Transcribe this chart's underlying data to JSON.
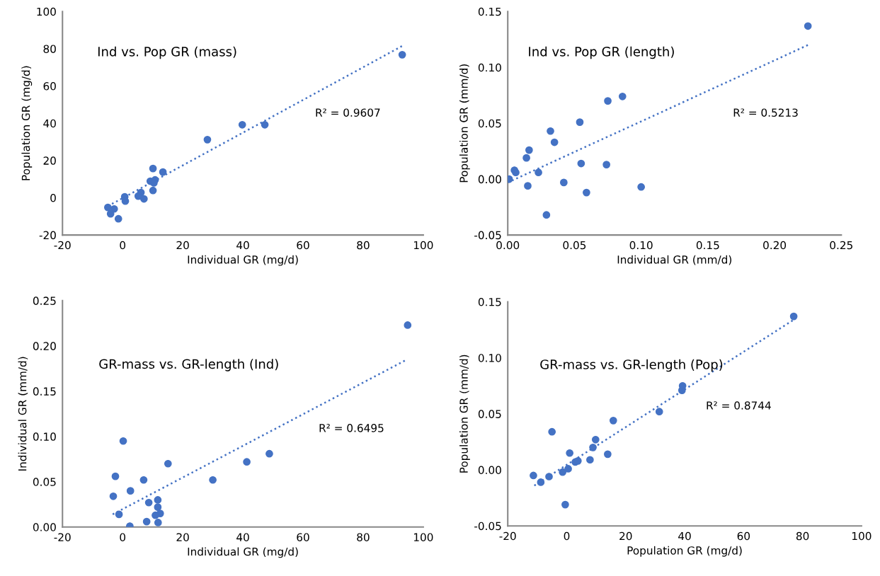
{
  "chart_data": [
    {
      "type": "scatter",
      "title": "Ind vs. Pop GR (mass)",
      "xlabel": "Individual GR (mg/d)",
      "ylabel": "Population GR (mg/d)",
      "annotations": [
        "R² = 0.9607"
      ],
      "grid": false,
      "marker": "circle",
      "xlim": [
        -20,
        100
      ],
      "xticks": [
        -20,
        0,
        20,
        40,
        60,
        80,
        100
      ],
      "ylim": [
        -20,
        100
      ],
      "yticks": [
        -20,
        0,
        20,
        40,
        60,
        80,
        100
      ],
      "series": [
        {
          "color": "#4472c4",
          "x": [
            93,
            39.8,
            47.3,
            28.2,
            10.1,
            13.4,
            9.2,
            10.8,
            10.4,
            10.1,
            0.7,
            0.9,
            6.1,
            5.2,
            7.1,
            -4.9,
            -2.8,
            -4.0,
            -1.4
          ],
          "values": [
            76.8,
            39.2,
            39.2,
            31.2,
            15.7,
            13.8,
            8.9,
            9.6,
            8.0,
            3.9,
            0.5,
            -1.8,
            2.8,
            0.9,
            -0.6,
            -5.2,
            -6.0,
            -8.6,
            -11.3
          ]
        },
        {
          "type": "line",
          "color": "#4472c4",
          "line_style": "dotted",
          "marker": "none",
          "x": [
            -4.9,
            93
          ],
          "values": [
            -4.5,
            81.5
          ]
        }
      ]
    },
    {
      "type": "scatter",
      "title": "Ind vs. Pop GR (length)",
      "xlabel": "Individual GR (mm/d)",
      "ylabel": "Population GR (mm/d)",
      "annotations": [
        "R² = 0.5213"
      ],
      "grid": false,
      "marker": "circle",
      "xlim": [
        0,
        0.25
      ],
      "xticks": [
        {
          "value": 0,
          "label": "0.00"
        },
        {
          "value": 0.05,
          "label": "0.05"
        },
        {
          "value": 0.1,
          "label": "0.10"
        },
        {
          "value": 0.15,
          "label": "0.15"
        },
        {
          "value": 0.2,
          "label": "0.20"
        },
        {
          "value": 0.25,
          "label": "0.25"
        }
      ],
      "ylim": [
        -0.05,
        0.15
      ],
      "yticks": [
        {
          "value": -0.05,
          "label": "-0.05"
        },
        {
          "value": 0,
          "label": "0.00"
        },
        {
          "value": 0.05,
          "label": "0.05"
        },
        {
          "value": 0.1,
          "label": "0.10"
        },
        {
          "value": 0.15,
          "label": "0.15"
        }
      ],
      "series": [
        {
          "color": "#4472c4",
          "x": [
            0.001,
            0.005,
            0.006,
            0.014,
            0.016,
            0.015,
            0.023,
            0.029,
            0.032,
            0.035,
            0.042,
            0.054,
            0.055,
            0.059,
            0.075,
            0.074,
            0.086,
            0.1,
            0.225
          ],
          "values": [
            0.0,
            0.008,
            0.006,
            0.019,
            0.026,
            -0.006,
            0.006,
            -0.032,
            0.043,
            0.033,
            -0.003,
            0.051,
            0.014,
            -0.012,
            0.07,
            0.013,
            0.074,
            -0.007,
            0.137
          ]
        },
        {
          "type": "line",
          "color": "#4472c4",
          "line_style": "dotted",
          "marker": "none",
          "x": [
            0,
            0.225
          ],
          "values": [
            -0.003,
            0.12
          ]
        }
      ]
    },
    {
      "type": "scatter",
      "title": "GR-mass vs. GR-length (Ind)",
      "xlabel": "Individual GR (mg/d)",
      "ylabel": "Individual GR (mm/d)",
      "annotations": [
        "R² = 0.6495"
      ],
      "grid": false,
      "marker": "circle",
      "xlim": [
        -20,
        100
      ],
      "xticks": [
        -20,
        0,
        20,
        40,
        60,
        80,
        100
      ],
      "ylim": [
        0,
        0.25
      ],
      "yticks": [
        {
          "value": 0,
          "label": "0.00"
        },
        {
          "value": 0.05,
          "label": "0.05"
        },
        {
          "value": 0.1,
          "label": "0.10"
        },
        {
          "value": 0.15,
          "label": "0.15"
        },
        {
          "value": 0.2,
          "label": "0.20"
        },
        {
          "value": 0.25,
          "label": "0.25"
        }
      ],
      "series": [
        {
          "color": "#4472c4",
          "x": [
            0.2,
            15.1,
            -2.4,
            7.0,
            2.6,
            -3.1,
            8.7,
            11.7,
            11.7,
            12.5,
            10.9,
            -1.2,
            8.0,
            11.8,
            2.4,
            30,
            41.3,
            48.8,
            94.8
          ],
          "values": [
            0.095,
            0.07,
            0.056,
            0.052,
            0.04,
            0.034,
            0.027,
            0.03,
            0.022,
            0.015,
            0.013,
            0.014,
            0.006,
            0.005,
            0.001,
            0.052,
            0.072,
            0.081,
            0.223
          ]
        },
        {
          "type": "line",
          "color": "#4472c4",
          "line_style": "dotted",
          "marker": "none",
          "x": [
            -3.3,
            94
          ],
          "values": [
            0.014,
            0.184
          ]
        }
      ]
    },
    {
      "type": "scatter",
      "title": "GR-mass vs. GR-length (Pop)",
      "xlabel": "Population GR (mg/d)",
      "ylabel": "Population GR (mm/d)",
      "annotations": [
        "R² = 0.8744"
      ],
      "grid": false,
      "marker": "circle",
      "xlim": [
        -20,
        100
      ],
      "xticks": [
        -20,
        0,
        20,
        40,
        60,
        80,
        100
      ],
      "ylim": [
        -0.05,
        0.15
      ],
      "yticks": [
        {
          "value": -0.05,
          "label": "-0.05"
        },
        {
          "value": 0,
          "label": "0.00"
        },
        {
          "value": 0.05,
          "label": "0.05"
        },
        {
          "value": 0.1,
          "label": "0.10"
        },
        {
          "value": 0.15,
          "label": "0.15"
        }
      ],
      "series": [
        {
          "color": "#4472c4",
          "x": [
            31.4,
            15.8,
            -5.0,
            9.8,
            8.9,
            1.0,
            13.9,
            7.9,
            2.9,
            3.8,
            0.5,
            -1.4,
            -11.3,
            -6.0,
            -8.8,
            -0.5,
            39.1,
            39.3,
            77
          ],
          "values": [
            0.052,
            0.044,
            0.034,
            0.027,
            0.02,
            0.015,
            0.014,
            0.009,
            0.007,
            0.008,
            0.001,
            -0.002,
            -0.005,
            -0.006,
            -0.011,
            -0.031,
            0.071,
            0.075,
            0.137
          ]
        },
        {
          "type": "line",
          "color": "#4472c4",
          "line_style": "dotted",
          "marker": "none",
          "x": [
            -11,
            77
          ],
          "values": [
            -0.014,
            0.134
          ]
        }
      ]
    }
  ]
}
